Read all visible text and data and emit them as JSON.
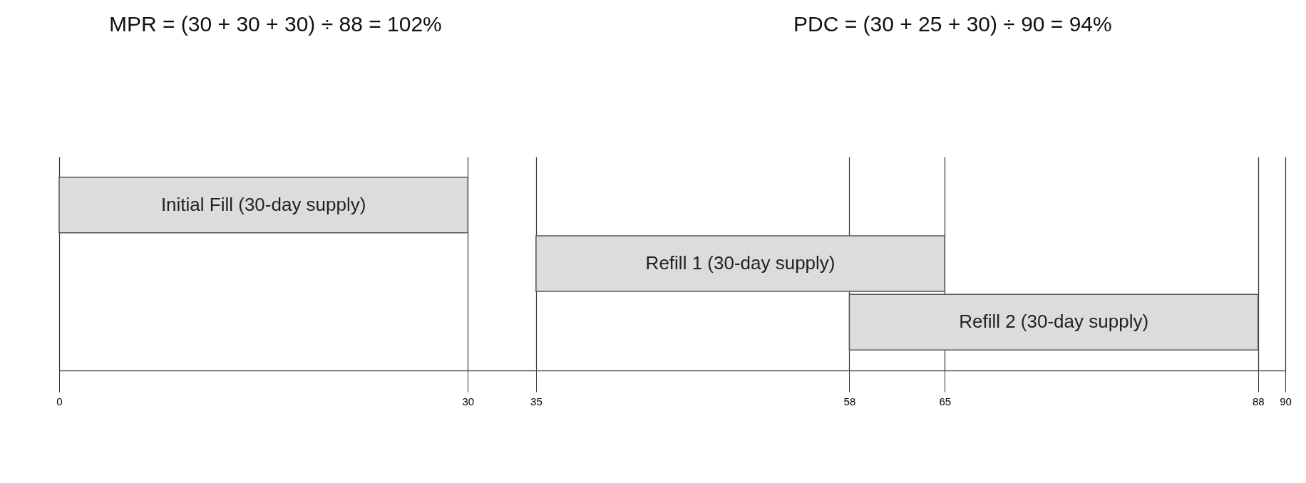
{
  "chart_data": {
    "type": "bar",
    "orientation": "horizontal",
    "categories": [
      "Initial Fill (30-day supply)",
      "Refill 1 (30-day supply)",
      "Refill 2 (30-day supply)"
    ],
    "base": [
      0,
      35,
      58
    ],
    "values": [
      30,
      30,
      30
    ],
    "color": "#dcdcdc",
    "xlim": [
      0,
      90
    ],
    "xticks": [
      0,
      30,
      35,
      58,
      65,
      88,
      90
    ],
    "grid": "x",
    "annotations": [
      "MPR = (30 + 30 + 30) ÷ 88 = 102%",
      "PDC = (30 + 25 + 30) ÷ 90 = 94%"
    ]
  }
}
